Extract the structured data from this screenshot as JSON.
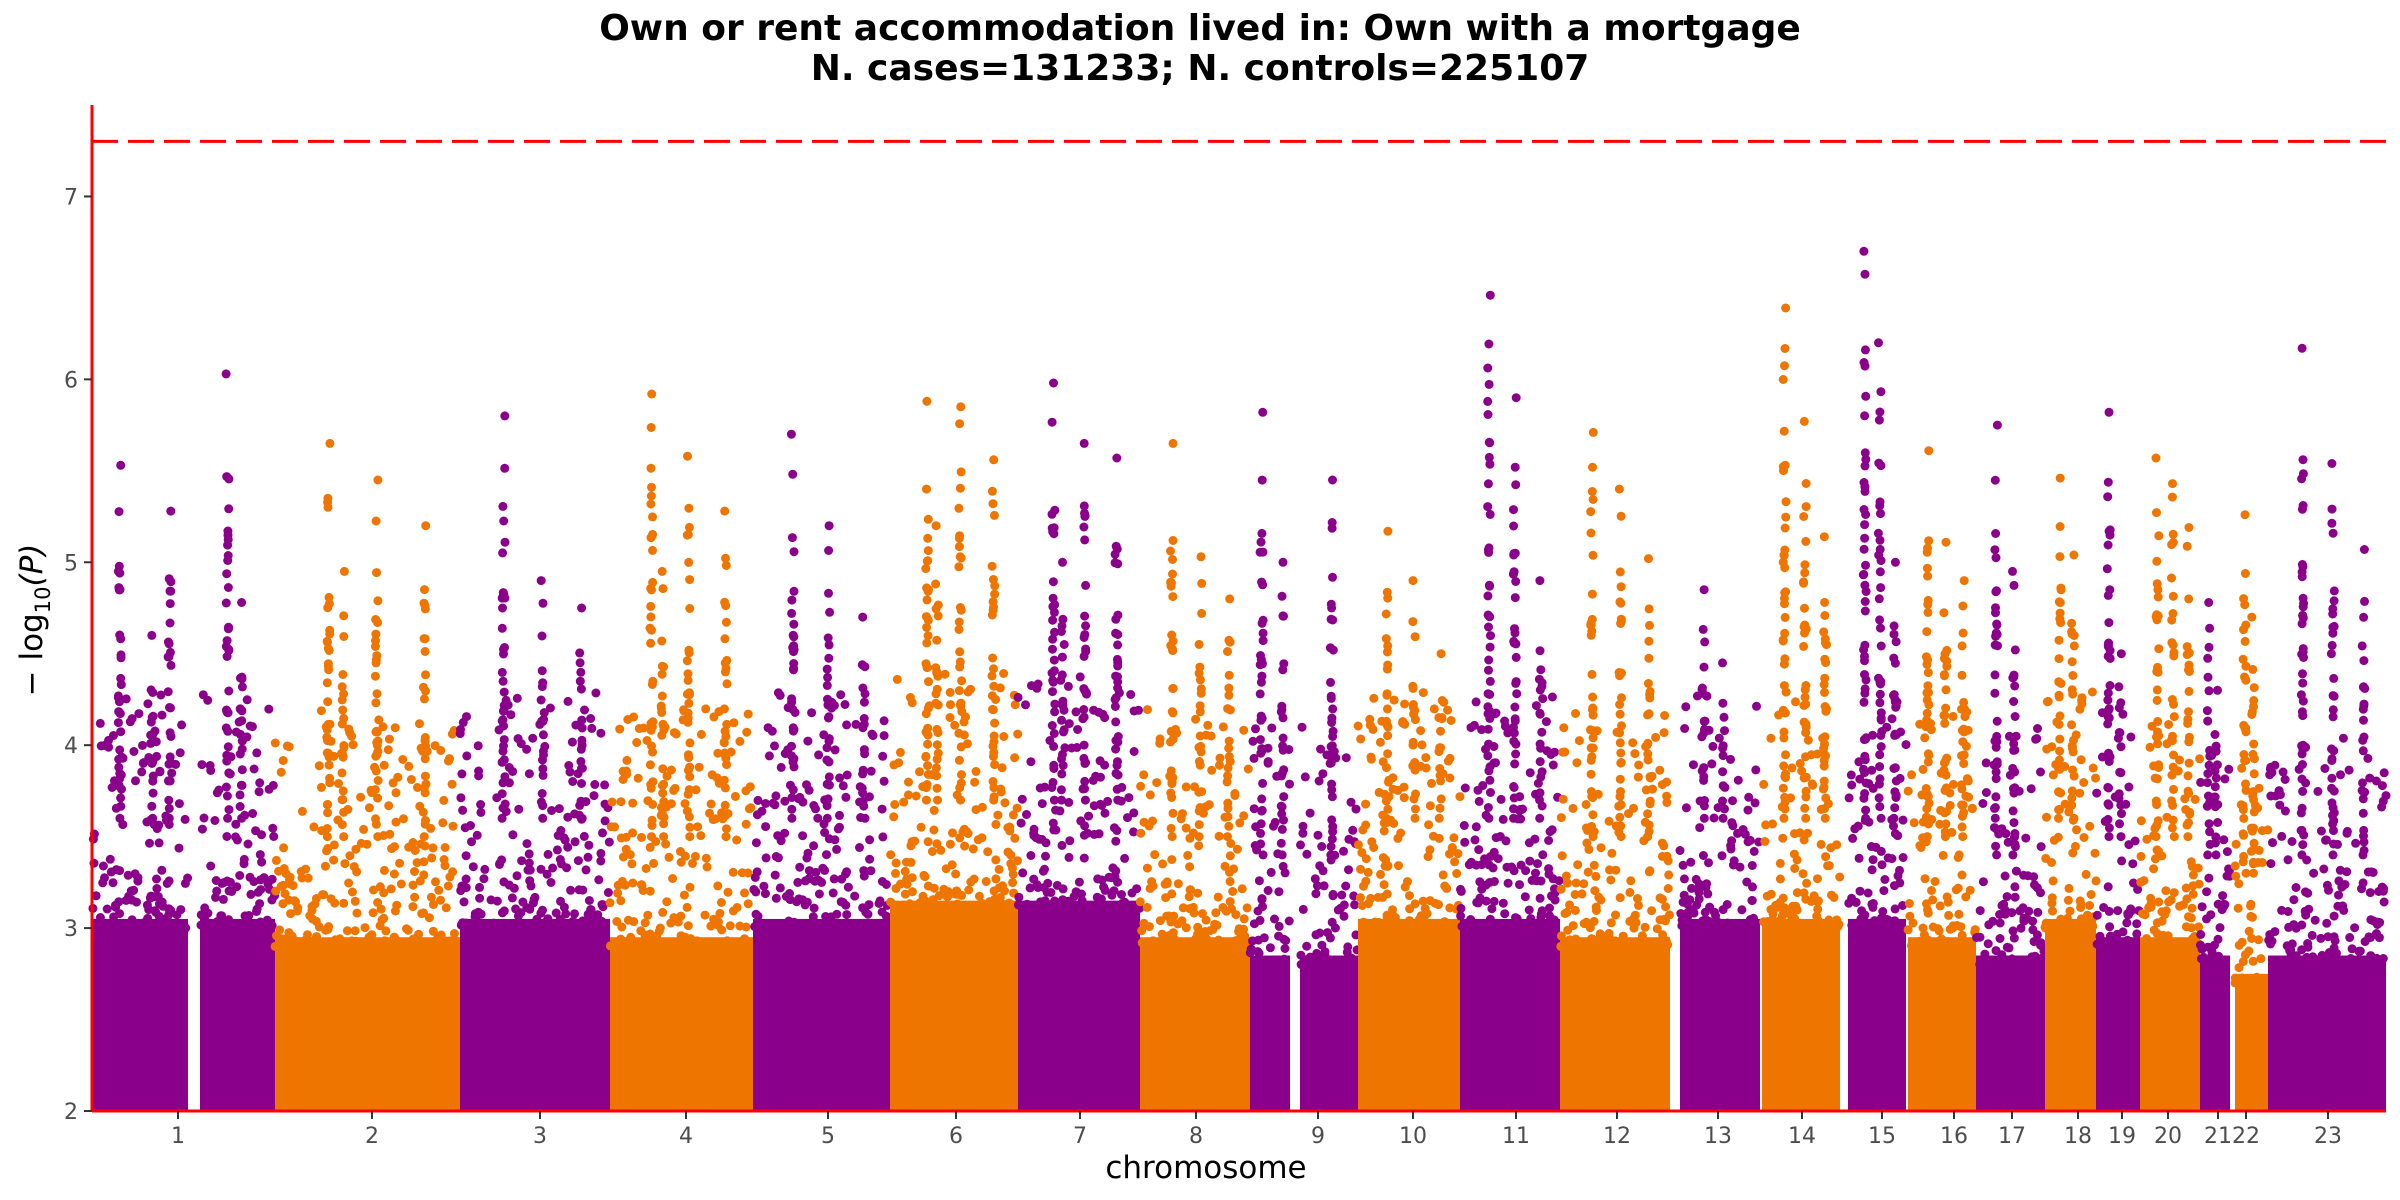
{
  "chart_data": {
    "type": "scatter",
    "subtype": "manhattan",
    "title": "Own or rent accommodation lived in: Own with a mortgage",
    "subtitle": "N. cases=131233; N. controls=225107",
    "xlabel": "chromosome",
    "ylabel": "− log10(P)",
    "ylabel_parts": {
      "prefix": "− log",
      "subscript": "10",
      "suffix": "(P)"
    },
    "ylim": [
      2,
      7.5
    ],
    "y_ticks": [
      "2",
      "3",
      "4",
      "5",
      "6",
      "7"
    ],
    "significance_threshold": 7.30103,
    "grid": false,
    "legend": "none",
    "colors": {
      "odd_chromosomes": "#8B008B",
      "even_chromosomes": "#EE7600",
      "threshold_line": "#FF0000",
      "axis_line": "#FF0000"
    },
    "chromosomes": [
      {
        "label": "1",
        "density_max": 3.6,
        "peaks": [
          5.53,
          4.78,
          5.28,
          6.03,
          4.6
        ]
      },
      {
        "label": "2",
        "density_max": 3.5,
        "peaks": [
          5.65,
          5.45,
          5.2,
          4.95
        ]
      },
      {
        "label": "3",
        "density_max": 3.6,
        "peaks": [
          5.8,
          4.9,
          4.75
        ]
      },
      {
        "label": "4",
        "density_max": 3.5,
        "peaks": [
          5.92,
          5.58,
          5.28,
          4.95
        ]
      },
      {
        "label": "5",
        "density_max": 3.6,
        "peaks": [
          5.7,
          5.2,
          4.7
        ]
      },
      {
        "label": "6",
        "density_max": 3.7,
        "peaks": [
          5.88,
          5.85,
          5.56,
          5.2
        ]
      },
      {
        "label": "7",
        "density_max": 3.7,
        "peaks": [
          5.98,
          5.65,
          5.57,
          5.0
        ]
      },
      {
        "label": "8",
        "density_max": 3.5,
        "peaks": [
          5.65,
          5.03,
          4.8
        ]
      },
      {
        "label": "9",
        "density_max": 3.4,
        "peaks": [
          5.82,
          5.45,
          5.0
        ]
      },
      {
        "label": "10",
        "density_max": 3.6,
        "peaks": [
          5.17,
          4.9,
          4.5
        ]
      },
      {
        "label": "11",
        "density_max": 3.6,
        "peaks": [
          6.46,
          5.9,
          4.9
        ]
      },
      {
        "label": "12",
        "density_max": 3.5,
        "peaks": [
          5.71,
          5.4,
          5.02
        ]
      },
      {
        "label": "13",
        "density_max": 3.6,
        "peaks": [
          4.85,
          4.45
        ]
      },
      {
        "label": "14",
        "density_max": 3.6,
        "peaks": [
          6.39,
          5.77,
          5.14
        ]
      },
      {
        "label": "15",
        "density_max": 3.6,
        "peaks": [
          6.7,
          6.2,
          5.0
        ]
      },
      {
        "label": "16",
        "density_max": 3.5,
        "peaks": [
          5.61,
          5.11,
          4.9
        ]
      },
      {
        "label": "17",
        "density_max": 3.4,
        "peaks": [
          5.75,
          4.95
        ]
      },
      {
        "label": "18",
        "density_max": 3.6,
        "peaks": [
          5.46,
          5.04
        ]
      },
      {
        "label": "19",
        "density_max": 3.5,
        "peaks": [
          5.82,
          4.5
        ]
      },
      {
        "label": "20",
        "density_max": 3.5,
        "peaks": [
          5.57,
          5.43,
          5.19
        ]
      },
      {
        "label": "21",
        "density_max": 3.4,
        "peaks": [
          4.78,
          4.3
        ]
      },
      {
        "label": "22",
        "density_max": 3.3,
        "peaks": [
          5.26,
          4.7
        ]
      },
      {
        "label": "23",
        "density_max": 3.4,
        "peaks": [
          6.17,
          5.54,
          5.07
        ]
      }
    ]
  }
}
